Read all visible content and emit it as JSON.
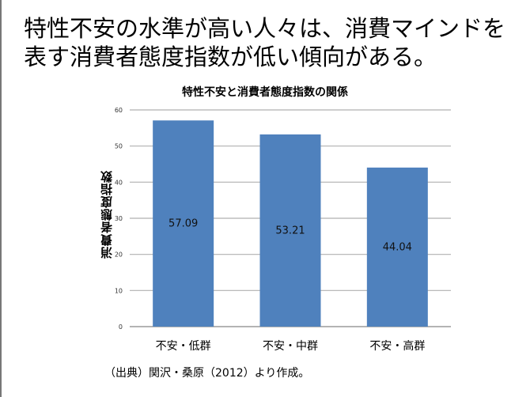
{
  "slide": {
    "headline_line1": "特性不安の水準が高い人々は、消費マインドを",
    "headline_line2": "表す消費者態度指数が低い傾向がある。",
    "source": "（出典）関沢・桑原（2012）より作成。"
  },
  "chart_data": {
    "type": "bar",
    "title": "特性不安と消費者態度指数の関係",
    "xlabel": "",
    "ylabel": "消費者態度指数",
    "categories": [
      "不安・低群",
      "不安・中群",
      "不安・高群"
    ],
    "values": [
      57.09,
      53.21,
      44.04
    ],
    "data_labels": [
      "57.09",
      "53.21",
      "44.04"
    ],
    "ylim": [
      0,
      60
    ],
    "yticks": [
      0,
      10,
      20,
      30,
      40,
      50,
      60
    ],
    "grid": true,
    "bar_color": "#4f81bd",
    "legend": "none"
  }
}
